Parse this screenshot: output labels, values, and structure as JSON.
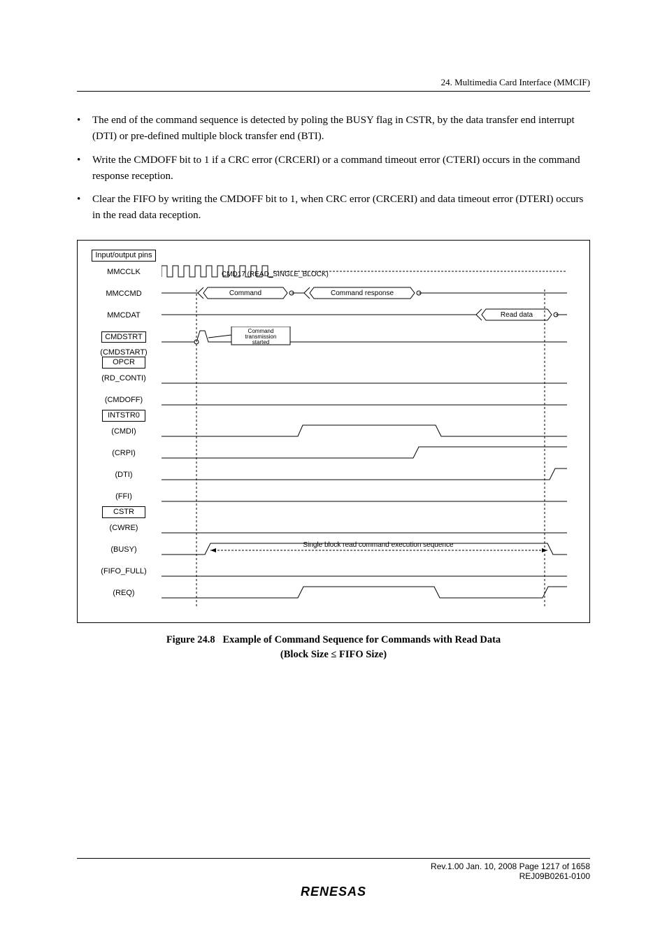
{
  "header": {
    "section": "24.   Multimedia Card Interface (MMCIF)"
  },
  "bullets": [
    "The end of the command sequence is detected by poling the BUSY flag in CSTR, by the data transfer end interrupt (DTI) or pre-defined multiple block transfer end (BTI).",
    "Write the CMDOFF bit to 1 if a CRC error (CRCERI) or a command timeout error (CTERI) occurs in the command response reception.",
    "Clear the FIFO by writing the CMDOFF bit to 1, when CRC error (CRCERI) and data timeout error (DTERI) occurs in the read data reception."
  ],
  "diagram": {
    "rows": [
      {
        "label": "Input/output pins",
        "boxed": true,
        "type": "blank"
      },
      {
        "label": "MMCCLK",
        "boxed": false,
        "type": "clock"
      },
      {
        "label": "MMCCMD",
        "boxed": false,
        "type": "cmd_resp"
      },
      {
        "label": "MMCDAT",
        "boxed": false,
        "type": "readdata"
      },
      {
        "label": "CMDSTRT",
        "boxed": true,
        "type": "pulse_early"
      },
      {
        "label": "(CMDSTART)",
        "boxed": false,
        "type": "stacked"
      },
      {
        "label": "OPCR",
        "boxed": true,
        "type": "blank_stack"
      },
      {
        "label": "(RD_CONTI)",
        "boxed": false,
        "type": "flat"
      },
      {
        "label": "(CMDOFF)",
        "boxed": false,
        "type": "flat"
      },
      {
        "label": "INTSTR0",
        "boxed": true,
        "type": "blank_stack"
      },
      {
        "label": "(CMDI)",
        "boxed": false,
        "type": "step_mid"
      },
      {
        "label": "(CRPI)",
        "boxed": false,
        "type": "step_later"
      },
      {
        "label": "(DTI)",
        "boxed": false,
        "type": "step_end"
      },
      {
        "label": "(FFI)",
        "boxed": false,
        "type": "flat"
      },
      {
        "label": "CSTR",
        "boxed": true,
        "type": "blank_stack"
      },
      {
        "label": "(CWRE)",
        "boxed": false,
        "type": "flat"
      },
      {
        "label": "(BUSY)",
        "boxed": false,
        "type": "busy"
      },
      {
        "label": "(FIFO_FULL)",
        "boxed": false,
        "type": "flat"
      },
      {
        "label": "(REQ)",
        "boxed": false,
        "type": "req"
      }
    ],
    "annotations": {
      "cmd17": "CMD17 (READ_SINGLE_BLOCK)",
      "command_box": "Command",
      "response_box": "Command response",
      "readdata_box": "Read data",
      "cmd_trans": "Command\ntransmission\nstarted",
      "busy_seq": "Single block read command execution sequence"
    },
    "stroke": "#000000",
    "dash": "3,2"
  },
  "caption": {
    "fig_num": "Figure 24.8",
    "title_line1": "Example of Command Sequence for Commands with Read Data",
    "title_line2": "(Block Size ≤ FIFO Size)"
  },
  "footer": {
    "rev_line": "Rev.1.00  Jan. 10, 2008  Page 1217 of 1658",
    "doc_id": "REJ09B0261-0100",
    "logo": "RENESAS"
  }
}
